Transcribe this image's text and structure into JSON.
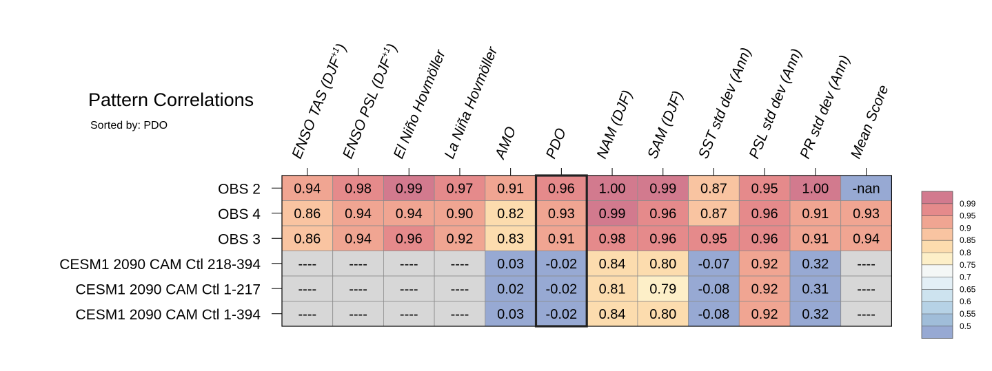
{
  "chart_data": {
    "type": "heatmap",
    "title": "Pattern Correlations",
    "subtitle": "Sorted by: PDO",
    "columns": [
      "ENSO TAS (DJF+1)",
      "ENSO PSL (DJF+1)",
      "El Niño Hovmöller",
      "La Niña Hovmöller",
      "AMO",
      "PDO",
      "NAM (DJF)",
      "SAM (DJF)",
      "SST std dev (Ann)",
      "PSL std dev (Ann)",
      "PR std dev (Ann)",
      "Mean Score"
    ],
    "rows": [
      {
        "label": "OBS 2",
        "values": [
          "0.94",
          "0.98",
          "0.99",
          "0.97",
          "0.91",
          "0.96",
          "1.00",
          "0.99",
          "0.87",
          "0.95",
          "1.00",
          "-nan"
        ]
      },
      {
        "label": "OBS 4",
        "values": [
          "0.86",
          "0.94",
          "0.94",
          "0.90",
          "0.82",
          "0.93",
          "0.99",
          "0.96",
          "0.87",
          "0.96",
          "0.91",
          "0.93"
        ]
      },
      {
        "label": "OBS 3",
        "values": [
          "0.86",
          "0.94",
          "0.96",
          "0.92",
          "0.83",
          "0.91",
          "0.98",
          "0.96",
          "0.95",
          "0.96",
          "0.91",
          "0.94"
        ]
      },
      {
        "label": "CESM1 2090 CAM Ctl 218-394",
        "values": [
          "----",
          "----",
          "----",
          "----",
          "0.03",
          "-0.02",
          "0.84",
          "0.80",
          "-0.07",
          "0.92",
          "0.32",
          "----"
        ]
      },
      {
        "label": "CESM1 2090 CAM Ctl 1-217",
        "values": [
          "----",
          "----",
          "----",
          "----",
          "0.02",
          "-0.02",
          "0.81",
          "0.79",
          "-0.08",
          "0.92",
          "0.31",
          "----"
        ]
      },
      {
        "label": "CESM1 2090 CAM Ctl 1-394",
        "values": [
          "----",
          "----",
          "----",
          "----",
          "0.03",
          "-0.02",
          "0.84",
          "0.80",
          "-0.08",
          "0.92",
          "0.32",
          "----"
        ]
      }
    ],
    "highlight_column": "PDO",
    "legend": {
      "ticks": [
        "0.99",
        "0.95",
        "0.9",
        "0.85",
        "0.8",
        "0.75",
        "0.7",
        "0.65",
        "0.6",
        "0.55",
        "0.5"
      ],
      "bins": [
        {
          "min": 0.99,
          "color": "#d27a8e"
        },
        {
          "min": 0.95,
          "color": "#e58a8b"
        },
        {
          "min": 0.9,
          "color": "#f0a592"
        },
        {
          "min": 0.85,
          "color": "#f9c4a1"
        },
        {
          "min": 0.8,
          "color": "#fcdcae"
        },
        {
          "min": 0.75,
          "color": "#fdefc8"
        },
        {
          "min": 0.7,
          "color": "#f4f7f6"
        },
        {
          "min": 0.65,
          "color": "#e3eff6"
        },
        {
          "min": 0.6,
          "color": "#cde3ef"
        },
        {
          "min": 0.55,
          "color": "#b6d2e6"
        },
        {
          "min": 0.5,
          "color": "#a0bdd9"
        },
        {
          "min": -100,
          "color": "#97a9d3"
        }
      ],
      "missing_color": "#d7d7d7",
      "nan_color": "#97a9d3"
    }
  }
}
